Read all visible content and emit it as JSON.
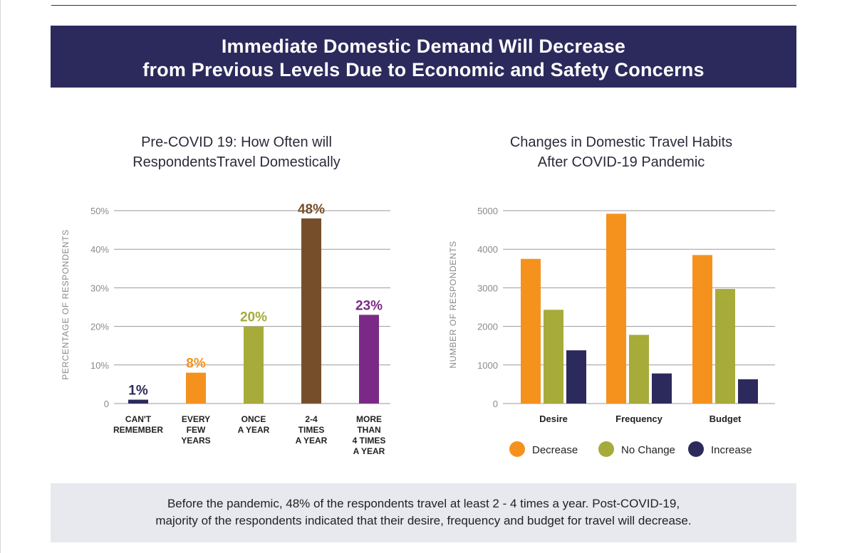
{
  "banner": {
    "line1": "Immediate Domestic Demand Will Decrease",
    "line2": "from Previous Levels Due to Economic and Safety Concerns"
  },
  "colors": {
    "banner": "#2c2a5c",
    "navy": "#2c2a5c",
    "orange": "#f5921e",
    "olive": "#a6ab3a",
    "brown": "#764f2a",
    "purple": "#7a2a86",
    "grid": "#9a9a9a",
    "axis_text": "#8a8a8a",
    "footer_bg": "#e8e9ee"
  },
  "chart_data": [
    {
      "type": "bar",
      "title_line1": "Pre-COVID 19: How Often will",
      "title_line2": "RespondentsTravel Domestically",
      "ylabel": "PERCENTAGE OF RESPONDENTS",
      "ylim": [
        0,
        50
      ],
      "yticks": [
        {
          "value": 0,
          "label": "0"
        },
        {
          "value": 10,
          "label": "10%"
        },
        {
          "value": 20,
          "label": "20%"
        },
        {
          "value": 30,
          "label": "30%"
        },
        {
          "value": 40,
          "label": "40%"
        },
        {
          "value": 50,
          "label": "50%"
        }
      ],
      "grid": true,
      "categories": [
        {
          "lines": [
            "CAN'T",
            "REMEMBER"
          ]
        },
        {
          "lines": [
            "EVERY",
            "FEW",
            "YEARS"
          ]
        },
        {
          "lines": [
            "ONCE",
            "A YEAR"
          ]
        },
        {
          "lines": [
            "2-4",
            "TIMES",
            "A YEAR"
          ]
        },
        {
          "lines": [
            "MORE",
            "THAN",
            "4 TIMES",
            "A YEAR"
          ]
        }
      ],
      "values": [
        1,
        8,
        20,
        48,
        23
      ],
      "data_labels": [
        "1%",
        "8%",
        "20%",
        "48%",
        "23%"
      ],
      "bar_colors": [
        "#2c2a5c",
        "#f5921e",
        "#a6ab3a",
        "#764f2a",
        "#7a2a86"
      ]
    },
    {
      "type": "bar",
      "title_line1": "Changes in Domestic Travel Habits",
      "title_line2": "After COVID-19 Pandemic",
      "ylabel": "NUMBER OF RESPONDENTS",
      "ylim": [
        0,
        5000
      ],
      "yticks": [
        {
          "value": 0,
          "label": "0"
        },
        {
          "value": 1000,
          "label": "1000"
        },
        {
          "value": 2000,
          "label": "2000"
        },
        {
          "value": 3000,
          "label": "3000"
        },
        {
          "value": 4000,
          "label": "4000"
        },
        {
          "value": 5000,
          "label": "5000"
        }
      ],
      "grid": true,
      "categories": [
        "Desire",
        "Frequency",
        "Budget"
      ],
      "series": [
        {
          "name": "Decrease",
          "color": "#f5921e",
          "values": [
            3750,
            4920,
            3850
          ]
        },
        {
          "name": "No Change",
          "color": "#a6ab3a",
          "values": [
            2430,
            1780,
            2970
          ]
        },
        {
          "name": "Increase",
          "color": "#2c2a5c",
          "values": [
            1380,
            780,
            630
          ]
        }
      ],
      "legend_position": "bottom"
    }
  ],
  "footer": {
    "line1": "Before the pandemic, 48% of the respondents travel at least 2 - 4 times a year. Post-COVID-19,",
    "line2": "majority of the respondents indicated that their desire, frequency and budget for travel will decrease."
  }
}
